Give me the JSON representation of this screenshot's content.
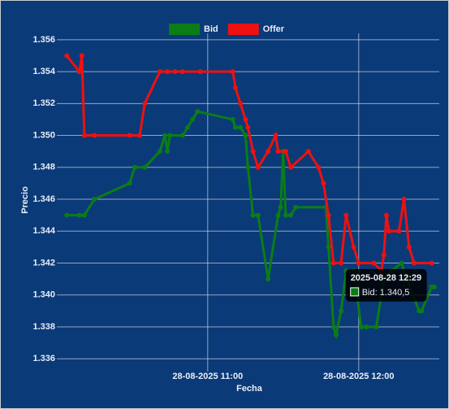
{
  "chart_data": {
    "type": "line",
    "x_label": "Fecha",
    "y_label": "Precio",
    "xlim": [
      "28-08-2025 10:02",
      "28-08-2025 12:32"
    ],
    "xticks": [
      "28-08-2025 11:00",
      "28-08-2025 12:00"
    ],
    "ylim": [
      1.3355,
      1.3564
    ],
    "yticks": [
      1.336,
      1.338,
      {
        "value": 1.34,
        "label": "1.340"
      },
      1.342,
      1.344,
      1.346,
      1.348,
      {
        "value": 1.35,
        "label": "1.350"
      },
      1.352,
      1.354,
      1.356
    ],
    "grid": true,
    "legend": "top",
    "series": [
      {
        "name": "Bid",
        "color": "#0a7d16",
        "x": [
          "28-08-2025 10:04",
          "28-08-2025 10:09",
          "28-08-2025 10:11",
          "28-08-2025 10:15",
          "28-08-2025 10:29",
          "28-08-2025 10:31",
          "28-08-2025 10:35",
          "28-08-2025 10:41",
          "28-08-2025 10:43",
          "28-08-2025 10:44",
          "28-08-2025 10:45",
          "28-08-2025 10:50",
          "28-08-2025 10:52",
          "28-08-2025 10:54",
          "28-08-2025 10:56",
          "28-08-2025 11:10",
          "28-08-2025 11:11",
          "28-08-2025 11:13",
          "28-08-2025 11:15",
          "28-08-2025 11:16",
          "28-08-2025 11:18",
          "28-08-2025 11:20",
          "28-08-2025 11:24",
          "28-08-2025 11:28",
          "28-08-2025 11:29",
          "28-08-2025 11:30",
          "28-08-2025 11:31",
          "28-08-2025 11:33",
          "28-08-2025 11:35",
          "28-08-2025 11:47",
          "28-08-2025 11:48",
          "28-08-2025 11:50",
          "28-08-2025 11:51",
          "28-08-2025 11:53",
          "28-08-2025 11:55",
          "28-08-2025 11:58",
          "28-08-2025 12:01",
          "28-08-2025 12:03",
          "28-08-2025 12:07",
          "28-08-2025 12:10",
          "28-08-2025 12:13",
          "28-08-2025 12:17",
          "28-08-2025 12:19",
          "28-08-2025 12:24",
          "28-08-2025 12:25",
          "28-08-2025 12:29",
          "28-08-2025 12:30"
        ],
        "values": [
          1.345,
          1.345,
          1.345,
          1.346,
          1.347,
          1.348,
          1.348,
          1.349,
          1.35,
          1.349,
          1.35,
          1.35,
          1.3505,
          1.351,
          1.3515,
          1.351,
          1.3505,
          1.3505,
          1.35,
          1.348,
          1.345,
          1.345,
          1.341,
          1.345,
          1.3455,
          1.349,
          1.345,
          1.345,
          1.3455,
          1.3455,
          1.343,
          1.338,
          1.3375,
          1.339,
          1.3415,
          1.3415,
          1.338,
          1.338,
          1.338,
          1.341,
          1.3415,
          1.342,
          1.341,
          1.339,
          1.339,
          1.3405,
          1.3405
        ]
      },
      {
        "name": "Offer",
        "color": "#ee1111",
        "x": [
          "28-08-2025 10:04",
          "28-08-2025 10:09",
          "28-08-2025 10:10",
          "28-08-2025 10:11",
          "28-08-2025 10:15",
          "28-08-2025 10:29",
          "28-08-2025 10:33",
          "28-08-2025 10:35",
          "28-08-2025 10:41",
          "28-08-2025 10:44",
          "28-08-2025 10:47",
          "28-08-2025 10:50",
          "28-08-2025 10:57",
          "28-08-2025 11:10",
          "28-08-2025 11:11",
          "28-08-2025 11:13",
          "28-08-2025 11:15",
          "28-08-2025 11:16",
          "28-08-2025 11:18",
          "28-08-2025 11:20",
          "28-08-2025 11:24",
          "28-08-2025 11:27",
          "28-08-2025 11:28",
          "28-08-2025 11:31",
          "28-08-2025 11:33",
          "28-08-2025 11:40",
          "28-08-2025 11:44",
          "28-08-2025 11:46",
          "28-08-2025 11:48",
          "28-08-2025 11:50",
          "28-08-2025 11:53",
          "28-08-2025 11:55",
          "28-08-2025 11:58",
          "28-08-2025 12:00",
          "28-08-2025 12:06",
          "28-08-2025 12:09",
          "28-08-2025 12:10",
          "28-08-2025 12:11",
          "28-08-2025 12:12",
          "28-08-2025 12:16",
          "28-08-2025 12:18",
          "28-08-2025 12:20",
          "28-08-2025 12:22",
          "28-08-2025 12:29"
        ],
        "values": [
          1.355,
          1.354,
          1.355,
          1.35,
          1.35,
          1.35,
          1.35,
          1.352,
          1.354,
          1.354,
          1.354,
          1.354,
          1.354,
          1.354,
          1.353,
          1.352,
          1.351,
          1.3505,
          1.349,
          1.348,
          1.349,
          1.35,
          1.349,
          1.349,
          1.348,
          1.349,
          1.348,
          1.347,
          1.345,
          1.342,
          1.342,
          1.345,
          1.343,
          1.342,
          1.342,
          1.3415,
          1.3425,
          1.345,
          1.344,
          1.344,
          1.346,
          1.343,
          1.342,
          1.342
        ]
      }
    ],
    "tooltip": {
      "title": "2025-08-28 12:29",
      "label": "Bid: 1.340,5",
      "series": 0,
      "index": 45
    }
  }
}
